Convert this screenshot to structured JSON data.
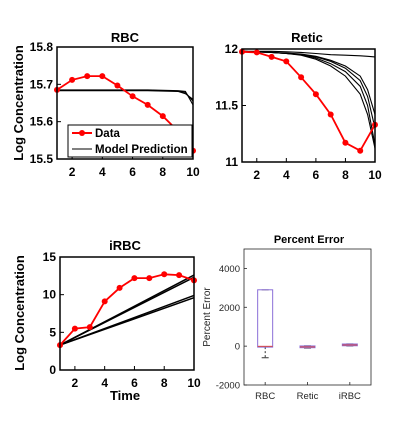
{
  "colors": {
    "data": "#ff0000",
    "model": "#000000",
    "box": "#8a6fd8",
    "median": "#d64545"
  },
  "legend": {
    "data_label": "Data",
    "model_label": "Model Prediction",
    "placement": "bottom-left of RBC panel"
  },
  "chart_data": [
    {
      "id": "rbc",
      "type": "line",
      "title": "RBC",
      "xlabel": "",
      "ylabel": "Log Concentration",
      "xlim": [
        1,
        10
      ],
      "ylim": [
        15.5,
        15.8
      ],
      "xticks": [
        "2",
        "4",
        "6",
        "8",
        "10"
      ],
      "yticks": [
        "15.5",
        "15.6",
        "15.7",
        "15.8"
      ],
      "series": [
        {
          "name": "Data",
          "x": [
            1,
            2,
            3,
            4,
            5,
            6,
            7,
            8,
            9,
            10
          ],
          "values": [
            15.685,
            15.712,
            15.722,
            15.722,
            15.697,
            15.668,
            15.645,
            15.615,
            15.575,
            15.522
          ]
        }
      ],
      "model_curves": {
        "x": [
          1,
          2,
          3,
          4,
          5,
          6,
          7,
          8,
          9,
          9.5,
          10
        ],
        "lines": [
          [
            15.685,
            15.685,
            15.685,
            15.685,
            15.685,
            15.685,
            15.685,
            15.684,
            15.683,
            15.681,
            15.645
          ],
          [
            15.684,
            15.684,
            15.684,
            15.684,
            15.684,
            15.684,
            15.684,
            15.683,
            15.682,
            15.678,
            15.655
          ],
          [
            15.683,
            15.683,
            15.683,
            15.683,
            15.683,
            15.683,
            15.683,
            15.682,
            15.681,
            15.675,
            15.66
          ]
        ]
      }
    },
    {
      "id": "retic",
      "type": "line",
      "title": "Retic",
      "xlabel": "",
      "ylabel": "",
      "xlim": [
        1,
        10
      ],
      "ylim": [
        11,
        12
      ],
      "xticks": [
        "2",
        "4",
        "6",
        "8",
        "10"
      ],
      "yticks": [
        "11",
        "11.5",
        "12"
      ],
      "series": [
        {
          "name": "Data",
          "x": [
            1,
            2,
            3,
            4,
            5,
            6,
            7,
            8,
            9,
            10
          ],
          "values": [
            11.975,
            11.97,
            11.93,
            11.89,
            11.75,
            11.6,
            11.42,
            11.17,
            11.1,
            11.33
          ]
        }
      ],
      "model_curves": {
        "x": [
          1,
          2,
          3,
          4,
          5,
          6,
          7,
          8,
          9,
          9.5,
          10
        ],
        "lines": [
          [
            11.98,
            11.98,
            11.98,
            11.975,
            11.97,
            11.96,
            11.95,
            11.945,
            11.94,
            11.935,
            11.93
          ],
          [
            11.98,
            11.975,
            11.97,
            11.96,
            11.95,
            11.92,
            11.87,
            11.8,
            11.67,
            11.5,
            11.15
          ],
          [
            11.98,
            11.975,
            11.97,
            11.96,
            11.95,
            11.93,
            11.89,
            11.83,
            11.72,
            11.58,
            11.3
          ],
          [
            11.98,
            11.975,
            11.97,
            11.965,
            11.955,
            11.935,
            11.9,
            11.85,
            11.76,
            11.64,
            11.42
          ],
          [
            11.98,
            11.975,
            11.97,
            11.96,
            11.945,
            11.91,
            11.85,
            11.76,
            11.6,
            11.42,
            11.12
          ]
        ]
      }
    },
    {
      "id": "irbc",
      "type": "line",
      "title": "iRBC",
      "xlabel": "Time",
      "ylabel": "Log Concentration",
      "xlim": [
        1,
        10
      ],
      "ylim": [
        0,
        15
      ],
      "xticks": [
        "2",
        "4",
        "6",
        "8",
        "10"
      ],
      "yticks": [
        "0",
        "5",
        "10",
        "15"
      ],
      "series": [
        {
          "name": "Data",
          "x": [
            1,
            2,
            3,
            4,
            5,
            6,
            7,
            8,
            9,
            10
          ],
          "values": [
            3.3,
            5.5,
            5.7,
            9.1,
            10.9,
            12.2,
            12.2,
            12.7,
            12.6,
            11.9
          ]
        }
      ],
      "model_curves": {
        "x": [
          1,
          10
        ],
        "lines": [
          [
            3.3,
            12.6
          ],
          [
            3.3,
            12.3
          ],
          [
            3.3,
            9.9
          ],
          [
            3.3,
            9.6
          ]
        ]
      }
    },
    {
      "id": "percent_error",
      "type": "box",
      "title": "Percent Error",
      "xlabel": "",
      "ylabel": "Percent Error",
      "ylim": [
        -2000,
        5000
      ],
      "yticks": [
        "-2000",
        "0",
        "2000",
        "4000"
      ],
      "categories": [
        "RBC",
        "Retic",
        "iRBC"
      ],
      "boxes": [
        {
          "category": "RBC",
          "q1": -50,
          "median": -10,
          "q3": 2900,
          "whisker_low": -600,
          "whisker_high": 2900
        },
        {
          "category": "Retic",
          "q1": -80,
          "median": -40,
          "q3": 10,
          "whisker_low": -100,
          "whisker_high": 20
        },
        {
          "category": "iRBC",
          "q1": 20,
          "median": 60,
          "q3": 110,
          "whisker_low": 10,
          "whisker_high": 120
        }
      ]
    }
  ]
}
